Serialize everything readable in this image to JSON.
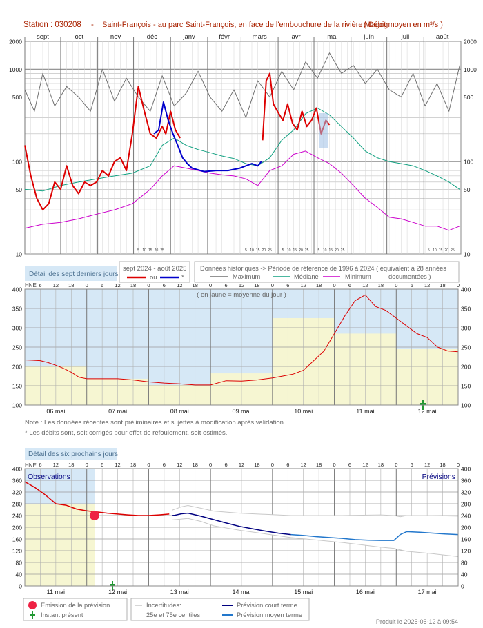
{
  "header": {
    "station_label": "Station : 030208",
    "dash": "-",
    "title": "Saint-François - au parc Saint-François, en face de l'embouchure de la rivière Magog",
    "unit": "( Débit moyen en m³/s )"
  },
  "colors": {
    "observed_red": "#dd0000",
    "observed_blue": "#0000cc",
    "maximum": "#707070",
    "median": "#10a080",
    "minimum": "#cc00cc",
    "panel_bg_blue": "#d6e8f6",
    "panel_bg_yellow": "#f6f6d2",
    "forecast_short": "#000080",
    "forecast_medium": "#2277cc",
    "uncertainty": "#c8c8c8",
    "emission_dot": "#ee2244",
    "instant_marker": "#229933"
  },
  "legend1": {
    "period_title": "sept 2024 - août 2025",
    "or_label": "ou",
    "star_label": "*",
    "historic_title": "Données historiques -> Période de référence  de 1996 à 2024   ( équivalent à 28 années",
    "max_label": "Maximum",
    "median_label": "Médiane",
    "min_label": "Minimum",
    "documented": "documentées )"
  },
  "section2": {
    "tab": "Détail des sept derniers jours",
    "hne": "HNE",
    "annotation": "( en jaune = moyenne du jour )",
    "note1": "Note : Les données récentes sont préliminaires et sujettes à modification après validation.",
    "note2": "* Les débits sont, soit corrigés pour effet de refoulement, soit estimés."
  },
  "section3": {
    "tab": "Détail des six prochains jours",
    "hne": "HNE",
    "obs_label": "Observations",
    "prev_label": "Prévisions"
  },
  "legend3": {
    "emission": "Émission de la prévision",
    "instant": "Instant présent",
    "uncert_title": "Incertitudes:",
    "uncert_sub": "25e et 75e centiles",
    "short_term": "Prévision court terme",
    "medium_term": "Prévision moyen terme"
  },
  "footer": {
    "produced": "Produit le 2025-05-12 à 09:54"
  },
  "chart_data": [
    {
      "type": "line",
      "title": "Saint-François - au parc Saint-François, en face de l'embouchure de la rivière Magog",
      "ylabel": "Débit moyen en m³/s",
      "yscale": "log",
      "ylim": [
        10,
        2000
      ],
      "yticks": [
        10,
        50,
        100,
        500,
        1000,
        2000
      ],
      "months": [
        "sept",
        "oct",
        "nov",
        "déc",
        "janv",
        "févr",
        "mars",
        "avr",
        "mai",
        "juin",
        "juil",
        "août"
      ],
      "day_ticks": [
        "5",
        "10",
        "15",
        "20",
        "25"
      ],
      "x_unit": "day of hydrological year starting 1 sept",
      "series": [
        {
          "name": "Maximum",
          "x": [
            0,
            8,
            15,
            25,
            35,
            45,
            55,
            65,
            75,
            85,
            95,
            105,
            115,
            125,
            135,
            145,
            155,
            165,
            175,
            185,
            195,
            205,
            215,
            225,
            235,
            245,
            255,
            265,
            275,
            285,
            295,
            305,
            315,
            325,
            335,
            345,
            355,
            364
          ],
          "values": [
            600,
            350,
            900,
            400,
            650,
            500,
            350,
            1000,
            450,
            800,
            500,
            350,
            850,
            400,
            550,
            950,
            500,
            350,
            600,
            300,
            750,
            500,
            950,
            600,
            1200,
            800,
            1500,
            900,
            1100,
            700,
            1000,
            600,
            500,
            900,
            400,
            700,
            350,
            1100
          ]
        },
        {
          "name": "Médiane",
          "x": [
            0,
            15,
            30,
            45,
            60,
            75,
            90,
            105,
            115,
            125,
            135,
            145,
            155,
            165,
            175,
            185,
            195,
            205,
            215,
            225,
            235,
            245,
            255,
            265,
            275,
            285,
            295,
            305,
            315,
            325,
            335,
            345,
            355,
            364
          ],
          "values": [
            50,
            48,
            55,
            60,
            65,
            70,
            75,
            90,
            150,
            180,
            150,
            135,
            125,
            115,
            108,
            95,
            90,
            110,
            170,
            220,
            330,
            380,
            320,
            240,
            180,
            130,
            110,
            100,
            95,
            90,
            80,
            70,
            60,
            50
          ]
        },
        {
          "name": "Minimum",
          "x": [
            0,
            15,
            30,
            45,
            60,
            75,
            90,
            105,
            115,
            125,
            135,
            145,
            155,
            165,
            175,
            185,
            195,
            205,
            215,
            225,
            235,
            245,
            255,
            265,
            275,
            285,
            295,
            305,
            315,
            325,
            335,
            345,
            355,
            364
          ],
          "values": [
            19,
            21,
            22,
            24,
            27,
            30,
            35,
            50,
            70,
            90,
            85,
            80,
            75,
            72,
            70,
            65,
            55,
            80,
            90,
            120,
            130,
            110,
            95,
            75,
            55,
            40,
            32,
            25,
            24,
            22,
            20,
            20,
            18,
            20
          ]
        },
        {
          "name": "sept 2024 - août 2025",
          "x": [
            0,
            5,
            10,
            15,
            20,
            25,
            30,
            35,
            40,
            45,
            50,
            55,
            60,
            65,
            70,
            75,
            80,
            85,
            90,
            95,
            100,
            105,
            110,
            115,
            118,
            122,
            126,
            130
          ],
          "values": [
            150,
            70,
            40,
            30,
            35,
            60,
            50,
            90,
            55,
            45,
            60,
            55,
            60,
            80,
            70,
            100,
            110,
            80,
            200,
            650,
            350,
            200,
            180,
            240,
            200,
            350,
            220,
            180
          ]
        },
        {
          "name": "*",
          "x": [
            108,
            112,
            116,
            120,
            124,
            128,
            132,
            136,
            140,
            150,
            160,
            170,
            180,
            190,
            195,
            198
          ],
          "values": [
            200,
            220,
            440,
            280,
            200,
            150,
            110,
            95,
            85,
            78,
            80,
            80,
            85,
            95,
            90,
            100
          ]
        },
        {
          "name": "sept 2024 - août 2025 (suite)",
          "x": [
            199,
            202,
            205,
            208,
            212,
            216,
            220,
            224,
            228,
            232,
            236,
            240,
            244,
            248,
            252,
            255
          ],
          "values": [
            170,
            750,
            900,
            420,
            340,
            280,
            420,
            260,
            220,
            350,
            240,
            280,
            380,
            200,
            280,
            250
          ]
        }
      ]
    },
    {
      "type": "line",
      "yscale": "linear",
      "ylim": [
        100,
        400
      ],
      "yticks": [
        100,
        150,
        200,
        250,
        300,
        350,
        400
      ],
      "days": [
        "06 mai",
        "07 mai",
        "08 mai",
        "09 mai",
        "10 mai",
        "11 mai",
        "12 mai"
      ],
      "hour_ticks": [
        "6",
        "12",
        "18",
        "0"
      ],
      "daily_mean": [
        200,
        168,
        152,
        182,
        325,
        285,
        245
      ],
      "series": [
        {
          "name": "Débit observé",
          "x": [
            0,
            3,
            6,
            9,
            12,
            15,
            18,
            21,
            24,
            30,
            36,
            42,
            48,
            54,
            60,
            66,
            72,
            78,
            84,
            90,
            96,
            100,
            104,
            108,
            112,
            116,
            120,
            124,
            128,
            132,
            136,
            140,
            144,
            148,
            152,
            156,
            160,
            164,
            168
          ],
          "values": [
            217,
            216,
            215,
            210,
            203,
            195,
            185,
            172,
            168,
            168,
            168,
            165,
            160,
            157,
            155,
            152,
            152,
            163,
            162,
            165,
            170,
            175,
            180,
            190,
            215,
            240,
            285,
            330,
            370,
            385,
            355,
            345,
            325,
            305,
            285,
            275,
            250,
            240,
            238
          ]
        }
      ]
    },
    {
      "type": "line",
      "yscale": "linear",
      "ylim": [
        0,
        400
      ],
      "yticks": [
        0,
        40,
        80,
        120,
        160,
        200,
        240,
        280,
        320,
        360,
        400
      ],
      "days": [
        "11 mai",
        "12 mai",
        "13 mai",
        "14 mai",
        "15 mai",
        "16 mai",
        "17 mai"
      ],
      "hour_ticks": [
        "6",
        "12",
        "18",
        "0"
      ],
      "series": [
        {
          "name": "Observations",
          "x": [
            0,
            4,
            8,
            12,
            16,
            20,
            24,
            28,
            32,
            36,
            40,
            44,
            48,
            52,
            56
          ],
          "values": [
            355,
            335,
            310,
            280,
            275,
            262,
            256,
            252,
            248,
            245,
            242,
            240,
            240,
            242,
            245
          ]
        },
        {
          "name": "Prévision court terme",
          "x": [
            57,
            60,
            66,
            72,
            84,
            96,
            108,
            120,
            132,
            144,
            156,
            168
          ],
          "values": [
            240,
            241,
            246,
            248,
            238,
            226,
            214,
            203,
            195,
            187,
            180,
            175
          ]
        },
        {
          "name": "Prévision moyen terme",
          "x": [
            168,
            180,
            192,
            204,
            216,
            228,
            240,
            252,
            264,
            270,
            276,
            288,
            300,
            312,
            324
          ],
          "values": [
            175,
            172,
            168,
            165,
            162,
            158,
            156,
            155,
            155,
            175,
            185,
            183,
            180,
            177,
            175
          ]
        },
        {
          "name": "75e centile",
          "x": [
            57,
            66,
            72,
            84,
            96,
            120,
            168,
            216,
            252,
            264,
            270,
            276,
            300,
            324
          ],
          "values": [
            258,
            270,
            274,
            265,
            255,
            248,
            240,
            240,
            242,
            240,
            236,
            240,
            240,
            238
          ]
        },
        {
          "name": "25e centile",
          "x": [
            57,
            66,
            72,
            84,
            96,
            120,
            168,
            216,
            252,
            264,
            276,
            300,
            324
          ],
          "values": [
            225,
            228,
            230,
            220,
            205,
            190,
            165,
            148,
            132,
            128,
            118,
            110,
            100
          ]
        }
      ]
    }
  ]
}
